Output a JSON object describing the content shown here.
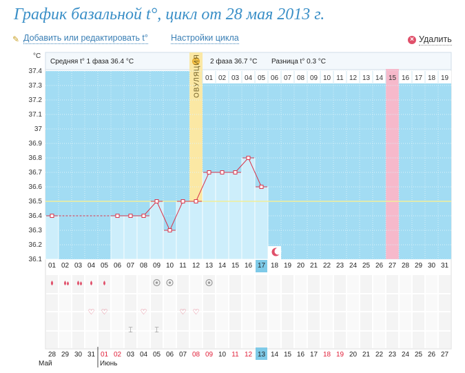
{
  "page": {
    "title": "График базальной t°, цикл от 28 мая 2013 г.",
    "edit_link": "Добавить или редактировать t°",
    "settings_link": "Настройки цикла",
    "delete_link": "Удалить"
  },
  "chart_data": {
    "type": "line",
    "unit_label": "°C",
    "ylim": [
      36.1,
      37.4
    ],
    "y_ticks": [
      "37.4",
      "37.3",
      "37.2",
      "37.1",
      "37",
      "36.9",
      "36.8",
      "36.7",
      "36.6",
      "36.5",
      "36.4",
      "36.3",
      "36.2",
      "36.1"
    ],
    "coverline": 36.5,
    "phase1_text": "Средняя t° 1 фаза 36.4 °C",
    "phase2_text": "2 фаза 36.7 °C",
    "diff_text": "Разница t° 0.3 °C",
    "ovulation_label": "ОВУЛЯЦИЯ",
    "ovulation_day": 12,
    "highlight_day": 27,
    "today_day": 17,
    "post_ovulation_days": [
      "01",
      "02",
      "03",
      "04",
      "05",
      "06",
      "07",
      "08",
      "09",
      "10",
      "11",
      "12",
      "13",
      "14",
      "15",
      "16",
      "17",
      "18",
      "19"
    ],
    "cycle_days": [
      "01",
      "02",
      "03",
      "04",
      "05",
      "06",
      "07",
      "08",
      "09",
      "10",
      "11",
      "12",
      "13",
      "14",
      "15",
      "16",
      "17",
      "18",
      "19",
      "20",
      "21",
      "22",
      "23",
      "24",
      "25",
      "26",
      "27",
      "28",
      "29",
      "30",
      "31"
    ],
    "temperatures": [
      36.4,
      null,
      null,
      null,
      null,
      36.4,
      36.4,
      36.4,
      36.5,
      36.3,
      36.5,
      36.5,
      36.7,
      36.7,
      36.7,
      36.8,
      36.6
    ],
    "interpolated": [
      [
        1,
        6
      ]
    ],
    "markers": {
      "bleeding": [
        1,
        2,
        3,
        4,
        5
      ],
      "heavy_bleeding": [
        2,
        3
      ],
      "discharge": [
        9,
        10,
        13
      ],
      "hearts": [
        4,
        5,
        8,
        11,
        12
      ],
      "tests": [
        7,
        9
      ],
      "moon": [
        18
      ]
    },
    "calendar_dates": [
      "28",
      "29",
      "30",
      "31",
      "01",
      "02",
      "03",
      "04",
      "05",
      "06",
      "07",
      "08",
      "09",
      "10",
      "11",
      "12",
      "13",
      "14",
      "15",
      "16",
      "17",
      "18",
      "19",
      "20",
      "21",
      "22",
      "23",
      "24",
      "25",
      "26",
      "27"
    ],
    "red_dates": [
      5,
      6,
      12,
      13,
      15,
      16,
      22,
      23
    ],
    "month_may": "Май",
    "month_june": "Июнь"
  }
}
